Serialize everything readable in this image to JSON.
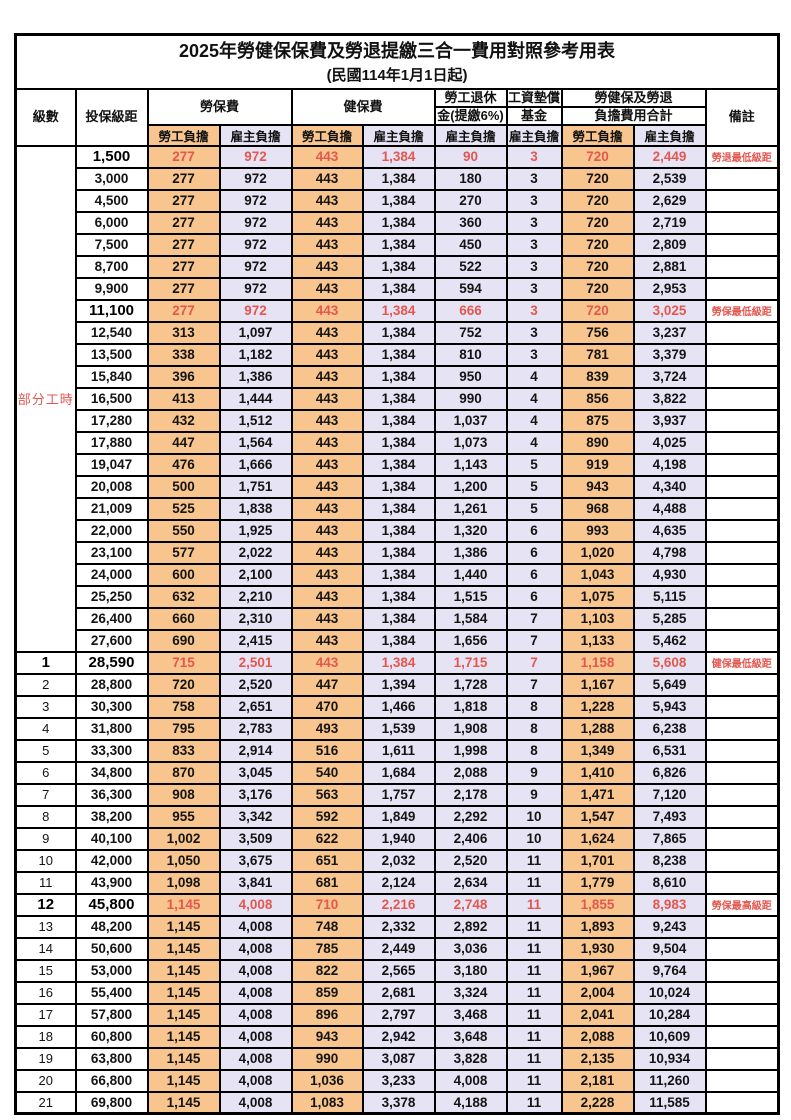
{
  "title": "2025年勞健保保費及勞退提繳三合一費用對照參考用表",
  "subtitle": "(民國114年1月1日起)",
  "colors": {
    "employee_bg": "#f8c58e",
    "employer_bg": "#e6e4f4",
    "highlight_text": "#e4574f",
    "border": "#000000"
  },
  "header": {
    "level": "級數",
    "bracket": "投保級距",
    "labor_group": "勞保費",
    "health_group": "健保費",
    "pension_line1": "勞工退休",
    "pension_line2": "金(提繳6%)",
    "wage_fund_line1": "工資墊償",
    "wage_fund_line2": "基金",
    "total_line1": "勞健保及勞退",
    "total_line2": "負擔費用合計",
    "remark": "備註",
    "employee": "勞工負擔",
    "employer": "雇主負擔"
  },
  "part_time_label": "部分工時",
  "row_fields": [
    "level",
    "bracket",
    "labor_employee",
    "labor_employer",
    "health_employee",
    "health_employer",
    "pension_employer",
    "wage_fund_employer",
    "total_employee",
    "total_employer",
    "remark",
    "highlight"
  ],
  "rows": [
    [
      "",
      "1,500",
      "277",
      "972",
      "443",
      "1,384",
      "90",
      "3",
      "720",
      "2,449",
      "勞退最低級距",
      1
    ],
    [
      "",
      "3,000",
      "277",
      "972",
      "443",
      "1,384",
      "180",
      "3",
      "720",
      "2,539",
      "",
      0
    ],
    [
      "",
      "4,500",
      "277",
      "972",
      "443",
      "1,384",
      "270",
      "3",
      "720",
      "2,629",
      "",
      0
    ],
    [
      "",
      "6,000",
      "277",
      "972",
      "443",
      "1,384",
      "360",
      "3",
      "720",
      "2,719",
      "",
      0
    ],
    [
      "",
      "7,500",
      "277",
      "972",
      "443",
      "1,384",
      "450",
      "3",
      "720",
      "2,809",
      "",
      0
    ],
    [
      "",
      "8,700",
      "277",
      "972",
      "443",
      "1,384",
      "522",
      "3",
      "720",
      "2,881",
      "",
      0
    ],
    [
      "",
      "9,900",
      "277",
      "972",
      "443",
      "1,384",
      "594",
      "3",
      "720",
      "2,953",
      "",
      0
    ],
    [
      "",
      "11,100",
      "277",
      "972",
      "443",
      "1,384",
      "666",
      "3",
      "720",
      "3,025",
      "勞保最低級距",
      1
    ],
    [
      "",
      "12,540",
      "313",
      "1,097",
      "443",
      "1,384",
      "752",
      "3",
      "756",
      "3,237",
      "",
      0
    ],
    [
      "",
      "13,500",
      "338",
      "1,182",
      "443",
      "1,384",
      "810",
      "3",
      "781",
      "3,379",
      "",
      0
    ],
    [
      "",
      "15,840",
      "396",
      "1,386",
      "443",
      "1,384",
      "950",
      "4",
      "839",
      "3,724",
      "",
      0
    ],
    [
      "",
      "16,500",
      "413",
      "1,444",
      "443",
      "1,384",
      "990",
      "4",
      "856",
      "3,822",
      "",
      0
    ],
    [
      "",
      "17,280",
      "432",
      "1,512",
      "443",
      "1,384",
      "1,037",
      "4",
      "875",
      "3,937",
      "",
      0
    ],
    [
      "",
      "17,880",
      "447",
      "1,564",
      "443",
      "1,384",
      "1,073",
      "4",
      "890",
      "4,025",
      "",
      0
    ],
    [
      "",
      "19,047",
      "476",
      "1,666",
      "443",
      "1,384",
      "1,143",
      "5",
      "919",
      "4,198",
      "",
      0
    ],
    [
      "",
      "20,008",
      "500",
      "1,751",
      "443",
      "1,384",
      "1,200",
      "5",
      "943",
      "4,340",
      "",
      0
    ],
    [
      "",
      "21,009",
      "525",
      "1,838",
      "443",
      "1,384",
      "1,261",
      "5",
      "968",
      "4,488",
      "",
      0
    ],
    [
      "",
      "22,000",
      "550",
      "1,925",
      "443",
      "1,384",
      "1,320",
      "6",
      "993",
      "4,635",
      "",
      0
    ],
    [
      "",
      "23,100",
      "577",
      "2,022",
      "443",
      "1,384",
      "1,386",
      "6",
      "1,020",
      "4,798",
      "",
      0
    ],
    [
      "",
      "24,000",
      "600",
      "2,100",
      "443",
      "1,384",
      "1,440",
      "6",
      "1,043",
      "4,930",
      "",
      0
    ],
    [
      "",
      "25,250",
      "632",
      "2,210",
      "443",
      "1,384",
      "1,515",
      "6",
      "1,075",
      "5,115",
      "",
      0
    ],
    [
      "",
      "26,400",
      "660",
      "2,310",
      "443",
      "1,384",
      "1,584",
      "7",
      "1,103",
      "5,285",
      "",
      0
    ],
    [
      "",
      "27,600",
      "690",
      "2,415",
      "443",
      "1,384",
      "1,656",
      "7",
      "1,133",
      "5,462",
      "",
      0
    ],
    [
      "1",
      "28,590",
      "715",
      "2,501",
      "443",
      "1,384",
      "1,715",
      "7",
      "1,158",
      "5,608",
      "健保最低級距",
      1
    ],
    [
      "2",
      "28,800",
      "720",
      "2,520",
      "447",
      "1,394",
      "1,728",
      "7",
      "1,167",
      "5,649",
      "",
      0
    ],
    [
      "3",
      "30,300",
      "758",
      "2,651",
      "470",
      "1,466",
      "1,818",
      "8",
      "1,228",
      "5,943",
      "",
      0
    ],
    [
      "4",
      "31,800",
      "795",
      "2,783",
      "493",
      "1,539",
      "1,908",
      "8",
      "1,288",
      "6,238",
      "",
      0
    ],
    [
      "5",
      "33,300",
      "833",
      "2,914",
      "516",
      "1,611",
      "1,998",
      "8",
      "1,349",
      "6,531",
      "",
      0
    ],
    [
      "6",
      "34,800",
      "870",
      "3,045",
      "540",
      "1,684",
      "2,088",
      "9",
      "1,410",
      "6,826",
      "",
      0
    ],
    [
      "7",
      "36,300",
      "908",
      "3,176",
      "563",
      "1,757",
      "2,178",
      "9",
      "1,471",
      "7,120",
      "",
      0
    ],
    [
      "8",
      "38,200",
      "955",
      "3,342",
      "592",
      "1,849",
      "2,292",
      "10",
      "1,547",
      "7,493",
      "",
      0
    ],
    [
      "9",
      "40,100",
      "1,002",
      "3,509",
      "622",
      "1,940",
      "2,406",
      "10",
      "1,624",
      "7,865",
      "",
      0
    ],
    [
      "10",
      "42,000",
      "1,050",
      "3,675",
      "651",
      "2,032",
      "2,520",
      "11",
      "1,701",
      "8,238",
      "",
      0
    ],
    [
      "11",
      "43,900",
      "1,098",
      "3,841",
      "681",
      "2,124",
      "2,634",
      "11",
      "1,779",
      "8,610",
      "",
      0
    ],
    [
      "12",
      "45,800",
      "1,145",
      "4,008",
      "710",
      "2,216",
      "2,748",
      "11",
      "1,855",
      "8,983",
      "勞保最高級距",
      1
    ],
    [
      "13",
      "48,200",
      "1,145",
      "4,008",
      "748",
      "2,332",
      "2,892",
      "11",
      "1,893",
      "9,243",
      "",
      0
    ],
    [
      "14",
      "50,600",
      "1,145",
      "4,008",
      "785",
      "2,449",
      "3,036",
      "11",
      "1,930",
      "9,504",
      "",
      0
    ],
    [
      "15",
      "53,000",
      "1,145",
      "4,008",
      "822",
      "2,565",
      "3,180",
      "11",
      "1,967",
      "9,764",
      "",
      0
    ],
    [
      "16",
      "55,400",
      "1,145",
      "4,008",
      "859",
      "2,681",
      "3,324",
      "11",
      "2,004",
      "10,024",
      "",
      0
    ],
    [
      "17",
      "57,800",
      "1,145",
      "4,008",
      "896",
      "2,797",
      "3,468",
      "11",
      "2,041",
      "10,284",
      "",
      0
    ],
    [
      "18",
      "60,800",
      "1,145",
      "4,008",
      "943",
      "2,942",
      "3,648",
      "11",
      "2,088",
      "10,609",
      "",
      0
    ],
    [
      "19",
      "63,800",
      "1,145",
      "4,008",
      "990",
      "3,087",
      "3,828",
      "11",
      "2,135",
      "10,934",
      "",
      0
    ],
    [
      "20",
      "66,800",
      "1,145",
      "4,008",
      "1,036",
      "3,233",
      "4,008",
      "11",
      "2,181",
      "11,260",
      "",
      0
    ],
    [
      "21",
      "69,800",
      "1,145",
      "4,008",
      "1,083",
      "3,378",
      "4,188",
      "11",
      "2,228",
      "11,585",
      "",
      0
    ]
  ]
}
